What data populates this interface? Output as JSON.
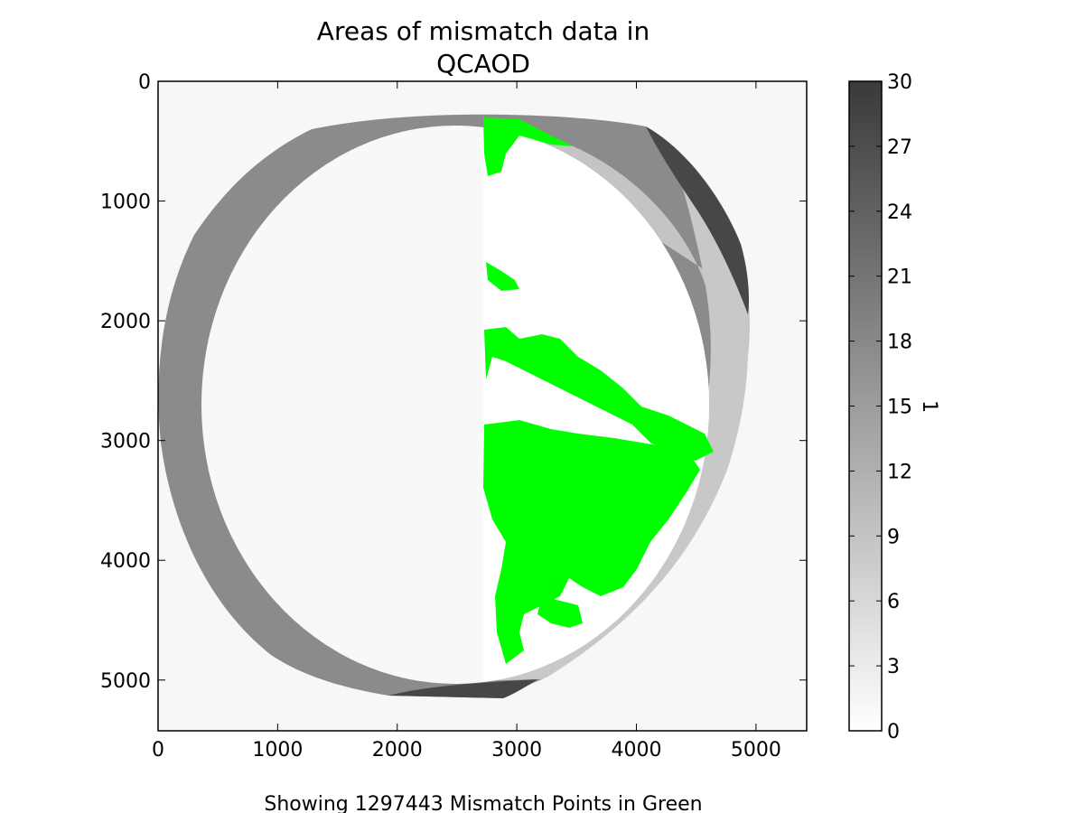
{
  "chart_data": {
    "type": "heatmap",
    "title_lines": [
      "Areas of mismatch data in",
      "QCAOD"
    ],
    "caption": "Showing 1297443 Mismatch Points in Green",
    "xlim": [
      0,
      5424
    ],
    "ylim": [
      5424,
      0
    ],
    "x_ticks": [
      0,
      1000,
      2000,
      3000,
      4000,
      5000
    ],
    "y_ticks": [
      0,
      1000,
      2000,
      3000,
      4000,
      5000
    ],
    "colorbar": {
      "label": "1",
      "range": [
        0,
        30
      ],
      "ticks": [
        0,
        3,
        6,
        9,
        12,
        15,
        18,
        21,
        24,
        27,
        30
      ],
      "colormap": "grayscale (white to dark gray)"
    },
    "mismatch_color": "#00ff00",
    "series": [
      {
        "region": "outside disk",
        "value": 1
      },
      {
        "region": "west outer crescent",
        "value": 16
      },
      {
        "region": "east outer crescent",
        "value": 9
      },
      {
        "region": "north-east crescent",
        "value": 27
      },
      {
        "region": "south crescent",
        "value": 27
      },
      {
        "region": "inner disk",
        "value": 0
      }
    ]
  }
}
